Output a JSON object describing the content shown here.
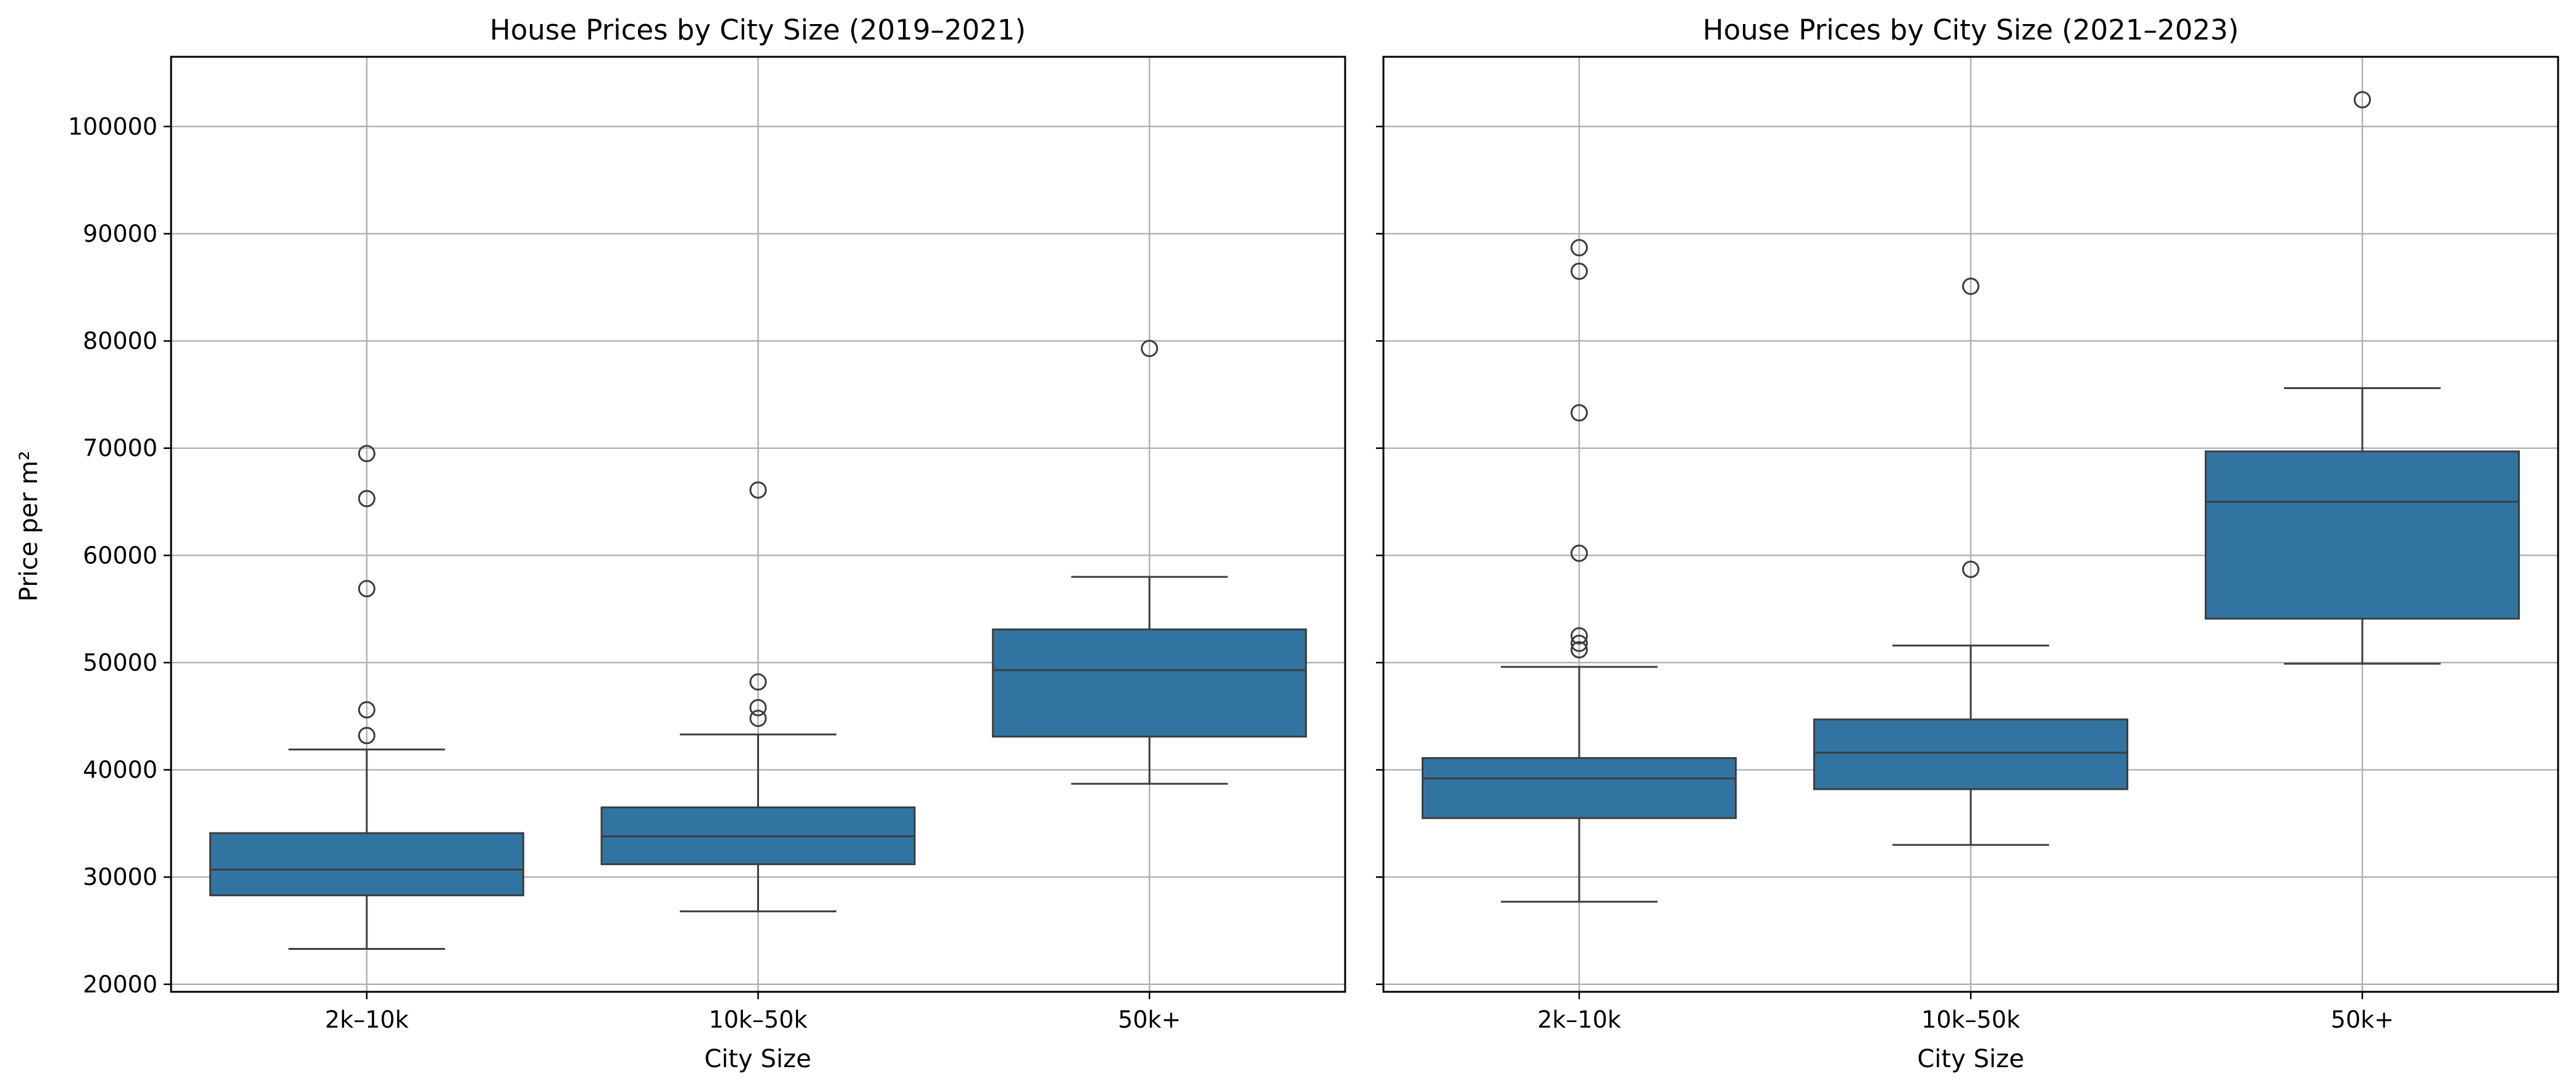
{
  "colors": {
    "box_fill": "#3274a1",
    "box_edge": "#3d3d3d",
    "grid": "#b0b0b0",
    "axes": "#000000"
  },
  "chart_data": [
    {
      "type": "box",
      "title": "House Prices by City Size (2019–2021)",
      "xlabel": "City Size",
      "ylabel": "Price per m²",
      "ylim": [
        19300,
        106500
      ],
      "yticks": [
        20000,
        30000,
        40000,
        50000,
        60000,
        70000,
        80000,
        90000,
        100000
      ],
      "grid": true,
      "categories": [
        "2k–10k",
        "10k–50k",
        "50k+"
      ],
      "boxes": [
        {
          "category": "2k–10k",
          "whisker_low": 23300,
          "q1": 28300,
          "median": 30700,
          "q3": 34100,
          "whisker_high": 41900,
          "outliers": [
            43200,
            45600,
            56900,
            65300,
            69500
          ]
        },
        {
          "category": "10k–50k",
          "whisker_low": 26800,
          "q1": 31200,
          "median": 33800,
          "q3": 36500,
          "whisker_high": 43300,
          "outliers": [
            44800,
            45800,
            48200,
            66100
          ]
        },
        {
          "category": "50k+",
          "whisker_low": 38700,
          "q1": 43100,
          "median": 49300,
          "q3": 53100,
          "whisker_high": 58000,
          "outliers": [
            79300
          ]
        }
      ]
    },
    {
      "type": "box",
      "title": "House Prices by City Size (2021–2023)",
      "xlabel": "City Size",
      "ylabel": "",
      "ylim": [
        19300,
        106500
      ],
      "yticks": [
        20000,
        30000,
        40000,
        50000,
        60000,
        70000,
        80000,
        90000,
        100000
      ],
      "grid": true,
      "categories": [
        "2k–10k",
        "10k–50k",
        "50k+"
      ],
      "boxes": [
        {
          "category": "2k–10k",
          "whisker_low": 27700,
          "q1": 35500,
          "median": 39200,
          "q3": 41100,
          "whisker_high": 49600,
          "outliers": [
            51200,
            51800,
            52500,
            60200,
            73300,
            86500,
            88700
          ]
        },
        {
          "category": "10k–50k",
          "whisker_low": 33000,
          "q1": 38200,
          "median": 41600,
          "q3": 44700,
          "whisker_high": 51600,
          "outliers": [
            58700,
            85100
          ]
        },
        {
          "category": "50k+",
          "whisker_low": 49900,
          "q1": 54100,
          "median": 65000,
          "q3": 69700,
          "whisker_high": 75600,
          "outliers": [
            102500
          ]
        }
      ]
    }
  ]
}
